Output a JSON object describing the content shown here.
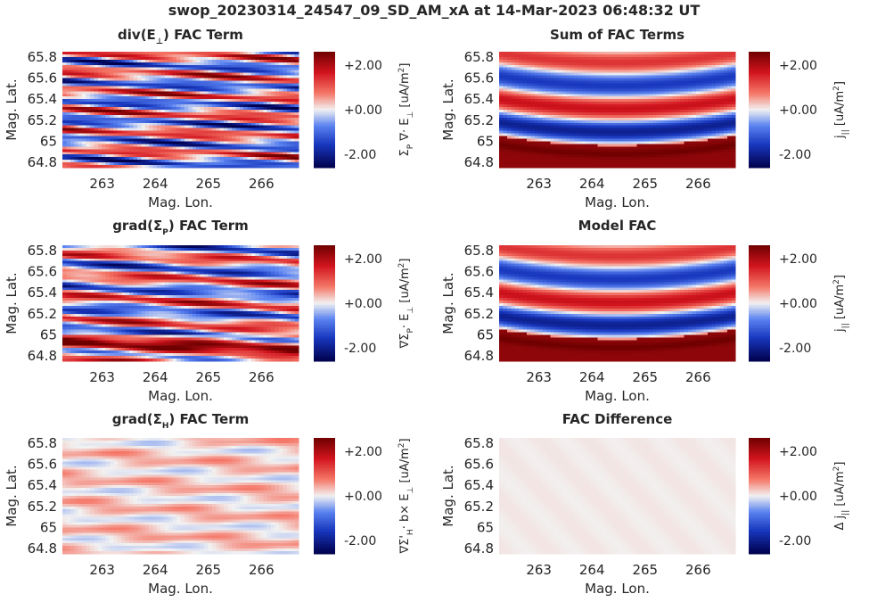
{
  "figure": {
    "title": "swop_20230314_24547_09_SD_AM_xA at 14-Mar-2023 06:48:32 UT"
  },
  "chart_data": [
    {
      "type": "heatmap",
      "title_main": "div(E",
      "title_sub": "⊥",
      "title_rest": ") FAC Term",
      "xlabel": "Mag. Lon.",
      "ylabel": "Mag. Lat.",
      "xlim": [
        262.25,
        266.7
      ],
      "ylim": [
        64.75,
        65.85
      ],
      "xticks": [
        "263",
        "264",
        "265",
        "266"
      ],
      "yticks": [
        "64.8",
        "65",
        "65.2",
        "65.4",
        "65.6",
        "65.8"
      ],
      "colorbar": {
        "ticks": [
          "+2.00",
          "+0.00",
          "-2.00"
        ],
        "label": "Σ_P ∇· E_⊥ [uA/m²]",
        "range": [
          -2.6,
          2.6
        ],
        "colormap": "seismic"
      },
      "field": {
        "pattern": "div_e"
      }
    },
    {
      "type": "heatmap",
      "title_main": "Sum of FAC Terms",
      "title_sub": "",
      "title_rest": "",
      "xlabel": "Mag. Lon.",
      "ylabel": "Mag. Lat.",
      "xlim": [
        262.25,
        266.7
      ],
      "ylim": [
        64.75,
        65.85
      ],
      "xticks": [
        "263",
        "264",
        "265",
        "266"
      ],
      "yticks": [
        "64.8",
        "65",
        "65.2",
        "65.4",
        "65.6",
        "65.8"
      ],
      "colorbar": {
        "ticks": [
          "+2.00",
          "+0.00",
          "-2.00"
        ],
        "label": "j_|| [uA/m²]",
        "range": [
          -2.6,
          2.6
        ],
        "colormap": "seismic"
      },
      "field": {
        "pattern": "model"
      }
    },
    {
      "type": "heatmap",
      "title_main": "grad(Σ",
      "title_sub": "P",
      "title_rest": ") FAC Term",
      "xlabel": "Mag. Lon.",
      "ylabel": "Mag. Lat.",
      "xlim": [
        262.25,
        266.7
      ],
      "ylim": [
        64.75,
        65.85
      ],
      "xticks": [
        "263",
        "264",
        "265",
        "266"
      ],
      "yticks": [
        "64.8",
        "65",
        "65.2",
        "65.4",
        "65.6",
        "65.8"
      ],
      "colorbar": {
        "ticks": [
          "+2.00",
          "+0.00",
          "-2.00"
        ],
        "label": "∇Σ_P· E_⊥ [uA/m²]",
        "range": [
          -2.6,
          2.6
        ],
        "colormap": "seismic"
      },
      "field": {
        "pattern": "grad_p"
      }
    },
    {
      "type": "heatmap",
      "title_main": "Model FAC",
      "title_sub": "",
      "title_rest": "",
      "xlabel": "Mag. Lon.",
      "ylabel": "Mag. Lat.",
      "xlim": [
        262.25,
        266.7
      ],
      "ylim": [
        64.75,
        65.85
      ],
      "xticks": [
        "263",
        "264",
        "265",
        "266"
      ],
      "yticks": [
        "64.8",
        "65",
        "65.2",
        "65.4",
        "65.6",
        "65.8"
      ],
      "colorbar": {
        "ticks": [
          "+2.00",
          "+0.00",
          "-2.00"
        ],
        "label": "j_|| [uA/m²]",
        "range": [
          -2.6,
          2.6
        ],
        "colormap": "seismic"
      },
      "field": {
        "pattern": "model"
      }
    },
    {
      "type": "heatmap",
      "title_main": "grad(Σ",
      "title_sub": "H",
      "title_rest": ") FAC Term",
      "xlabel": "Mag. Lon.",
      "ylabel": "Mag. Lat.",
      "xlim": [
        262.25,
        266.7
      ],
      "ylim": [
        64.75,
        65.85
      ],
      "xticks": [
        "263",
        "264",
        "265",
        "266"
      ],
      "yticks": [
        "64.8",
        "65",
        "65.2",
        "65.4",
        "65.6",
        "65.8"
      ],
      "colorbar": {
        "ticks": [
          "+2.00",
          "+0.00",
          "-2.00"
        ],
        "label": "∇Σ'_H· b× E_⊥ [uA/m²]",
        "range": [
          -2.6,
          2.6
        ],
        "colormap": "seismic"
      },
      "field": {
        "pattern": "grad_h"
      }
    },
    {
      "type": "heatmap",
      "title_main": "FAC Difference",
      "title_sub": "",
      "title_rest": "",
      "xlabel": "Mag. Lon.",
      "ylabel": "Mag. Lat.",
      "xlim": [
        262.25,
        266.7
      ],
      "ylim": [
        64.75,
        65.85
      ],
      "xticks": [
        "263",
        "264",
        "265",
        "266"
      ],
      "yticks": [
        "64.8",
        "65",
        "65.2",
        "65.4",
        "65.6",
        "65.8"
      ],
      "colorbar": {
        "ticks": [
          "+2.00",
          "+0.00",
          "-2.00"
        ],
        "label": "Δ j_|| [uA/m²]",
        "range": [
          -2.6,
          2.6
        ],
        "colormap": "seismic"
      },
      "field": {
        "pattern": "diff"
      }
    }
  ]
}
